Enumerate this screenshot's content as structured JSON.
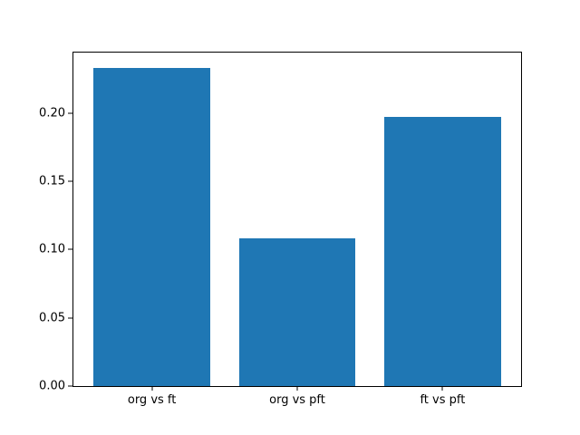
{
  "chart_data": {
    "type": "bar",
    "categories": [
      "org vs ft",
      "org vs pft",
      "ft vs pft"
    ],
    "values": [
      0.233,
      0.108,
      0.197
    ],
    "title": "",
    "xlabel": "",
    "ylabel": "",
    "ylim": [
      0,
      0.2443
    ],
    "xlim": [
      -0.54,
      2.54
    ],
    "yticks": [
      0.0,
      0.05,
      0.1,
      0.15,
      0.2
    ],
    "ytick_labels": [
      "0.00",
      "0.05",
      "0.10",
      "0.15",
      "0.20"
    ],
    "bar_color": "#1f77b4",
    "bar_width_fraction": 0.8,
    "grid": false,
    "legend_position": "none",
    "background_color": "#ffffff"
  }
}
